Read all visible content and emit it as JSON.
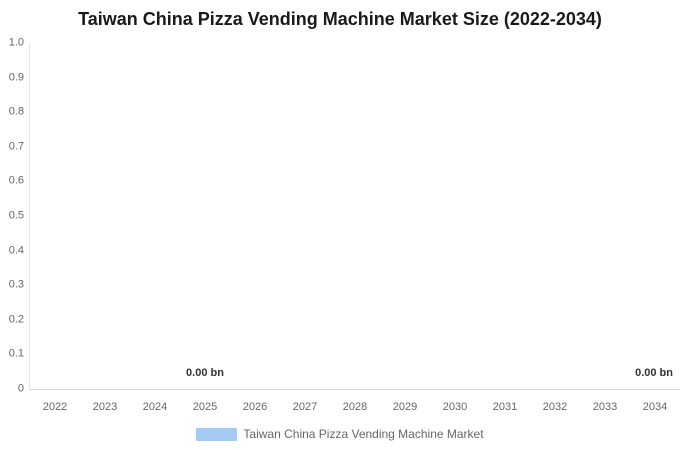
{
  "title": "Taiwan China Pizza Vending Machine Market Size (2022-2034)",
  "legend": {
    "label": "Taiwan China Pizza Vending Machine Market",
    "swatch_color": "#a5cbf2"
  },
  "colors": {
    "series": "#a5cbf2",
    "title_text": "#1a1a1a",
    "axis_label_text": "#666666",
    "data_label_text": "#333333",
    "y_axis_line": "#e6e6e6",
    "x_axis_line": "#d4d4d4",
    "background": "#ffffff"
  },
  "chart_data": {
    "type": "bar",
    "title": "Taiwan China Pizza Vending Machine Market Size (2022-2034)",
    "categories": [
      "2022",
      "2023",
      "2024",
      "2025",
      "2026",
      "2027",
      "2028",
      "2029",
      "2030",
      "2031",
      "2032",
      "2033",
      "2034"
    ],
    "series": [
      {
        "name": "Taiwan China Pizza Vending Machine Market",
        "color": "#a5cbf2",
        "values": [
          0.0,
          0.0,
          0.0,
          0.0,
          0.0,
          0.0,
          0.0,
          0.0,
          0.0,
          0.0,
          0.0,
          0.0,
          0.0
        ],
        "unit": "bn"
      }
    ],
    "xlabel": "",
    "ylabel": "",
    "ylim": [
      0,
      1.0
    ],
    "yticks": [
      "1.0",
      "0.9",
      "0.8",
      "0.7",
      "0.6",
      "0.5",
      "0.4",
      "0.3",
      "0.2",
      "0.1",
      "0"
    ],
    "grid": false,
    "legend_position": "bottom",
    "data_labels": [
      {
        "category": "2025",
        "text": "0.00 bn",
        "align": "center"
      },
      {
        "category": "2034",
        "text": "0.00 bn",
        "align": "right"
      }
    ]
  }
}
